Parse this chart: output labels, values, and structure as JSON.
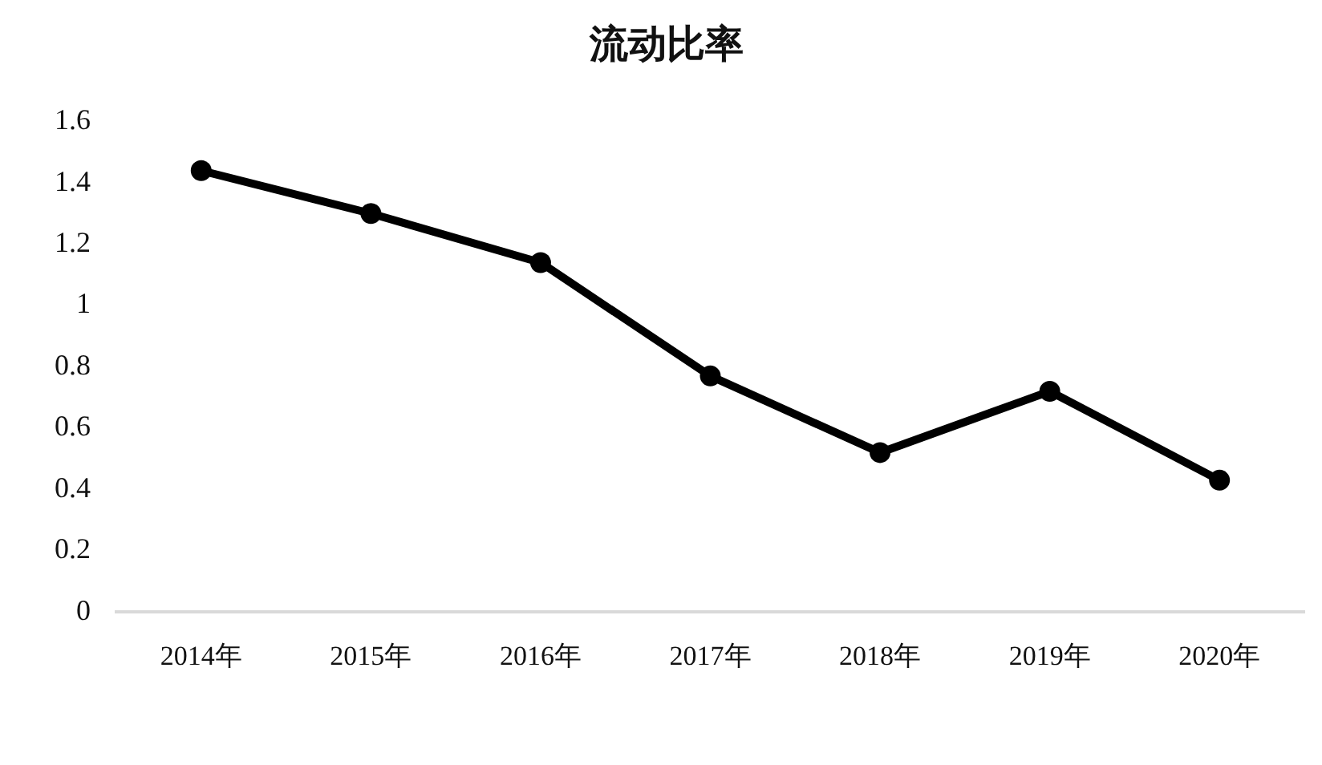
{
  "chart_data": {
    "type": "line",
    "title": "流动比率",
    "categories": [
      "2014年",
      "2015年",
      "2016年",
      "2017年",
      "2018年",
      "2019年",
      "2020年"
    ],
    "series": [
      {
        "color": "#000000",
        "values": [
          1.44,
          1.3,
          1.14,
          0.77,
          0.52,
          0.72,
          0.43
        ]
      }
    ],
    "ylim": [
      0,
      1.6
    ],
    "yticks": [
      0,
      0.2,
      0.4,
      0.6,
      0.8,
      1,
      1.2,
      1.4,
      1.6
    ],
    "marker": "circle",
    "line_style": "solid"
  }
}
